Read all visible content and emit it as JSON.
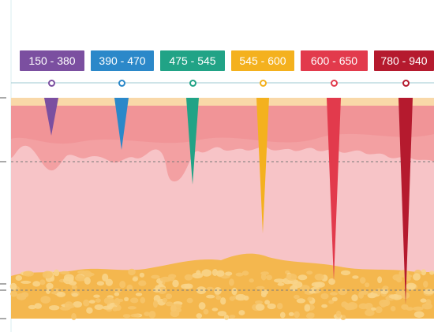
{
  "colors": {
    "surface": "#f9d8a8",
    "epidermis": "#f3a0a2",
    "dermis": "#f7c4c7",
    "fat": "#f4b74e",
    "fat_light": "#f8d48a",
    "guide_line": "#9ec9d0",
    "dashed_line": "#7a7a7a"
  },
  "wavelength_bands": [
    {
      "label": "150 - 380",
      "color": "#7b4fa0",
      "depth_level": "epidermis"
    },
    {
      "label": "390 - 470",
      "color": "#2b88c9",
      "depth_level": "epidermis"
    },
    {
      "label": "475 - 545",
      "color": "#21a386",
      "depth_level": "upper dermis"
    },
    {
      "label": "545 - 600",
      "color": "#f4b11e",
      "depth_level": "dermis"
    },
    {
      "label": "600 - 650",
      "color": "#e23a4c",
      "depth_level": "subcutaneous fat"
    },
    {
      "label": "780 - 940",
      "color": "#b51a2e",
      "depth_level": "subcutaneous fat"
    }
  ]
}
